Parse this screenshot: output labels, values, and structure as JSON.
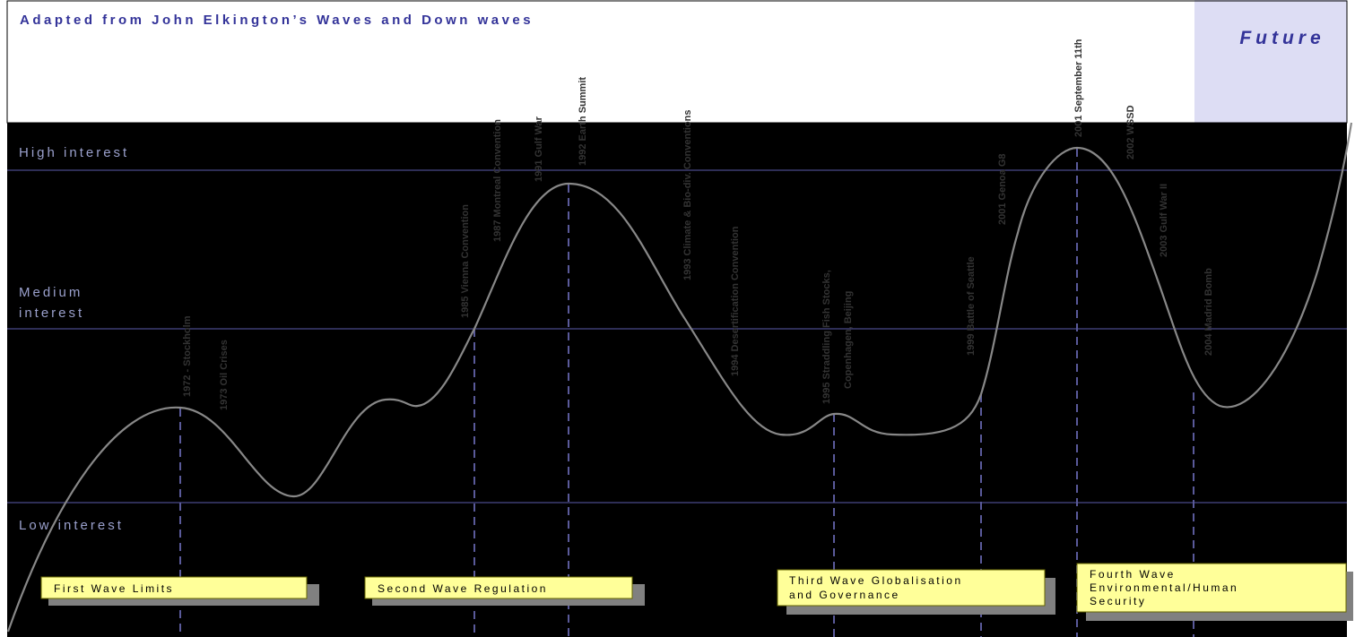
{
  "title": "Adapted from John Elkington’s Waves and Down waves",
  "future_label": "Future",
  "levels": [
    {
      "lines": [
        "High interest"
      ]
    },
    {
      "lines": [
        "Medium",
        "interest"
      ]
    },
    {
      "lines": [
        "Low interest"
      ]
    }
  ],
  "events": [
    {
      "label": "1972 - Stockholm"
    },
    {
      "label": "1973 Oil Crises"
    },
    {
      "label": "1985 Vienna Convention"
    },
    {
      "label": "1987 Montreal Convention"
    },
    {
      "label": "1991 Gulf War"
    },
    {
      "label": "1992 Earth Summit"
    },
    {
      "label": "1993 Climate & Bio-div. Conventions"
    },
    {
      "label": "1994 Desertification Convention"
    },
    {
      "label": "1995 Straddling Fish Stocks,"
    },
    {
      "label": "Copenhagen, Beijing"
    },
    {
      "label": "1999 Battle of Seattle"
    },
    {
      "label": "2001 Genoa G8"
    },
    {
      "label": "2001 September 11th"
    },
    {
      "label": "2002 WSSD"
    },
    {
      "label": "2003 Gulf War II"
    },
    {
      "label": "2004 Madrid Bomb"
    }
  ],
  "waves": [
    {
      "lines": [
        "First Wave Limits"
      ]
    },
    {
      "lines": [
        "Second Wave Regulation"
      ]
    },
    {
      "lines": [
        "Third Wave Globalisation",
        "and Governance"
      ]
    },
    {
      "lines": [
        "Fourth Wave",
        "Environmental/Human",
        "Security"
      ]
    }
  ],
  "colors": {
    "background": "#000000",
    "title_text": "#333399",
    "future_band": "#ddddf4",
    "level_line": "#4a4a8a",
    "level_text": "#9aa0cc",
    "event_marker": "#5a5a9a",
    "curve": "#888888",
    "wave_box": "#ffff99",
    "wave_shadow": "#808080"
  }
}
